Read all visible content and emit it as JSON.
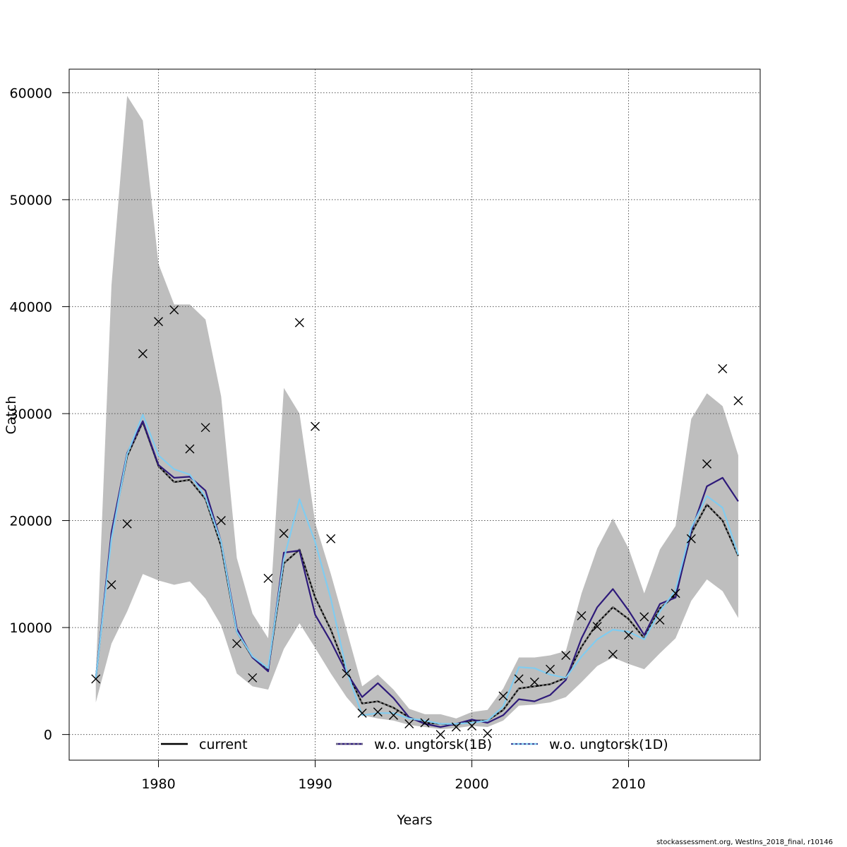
{
  "chart_data": {
    "type": "line",
    "xlabel": "Years",
    "ylabel": "Catch",
    "xlim": [
      1974.3,
      2018.4
    ],
    "ylim": [
      -2400,
      62200
    ],
    "x_ticks": [
      1980,
      1990,
      2000,
      2010
    ],
    "y_ticks": [
      0,
      10000,
      20000,
      30000,
      40000,
      50000,
      60000
    ],
    "grid": true,
    "legend_position": "bottom-inside",
    "x": [
      1976,
      1977,
      1978,
      1979,
      1980,
      1981,
      1982,
      1983,
      1984,
      1985,
      1986,
      1987,
      1988,
      1989,
      1990,
      1991,
      1992,
      1993,
      1994,
      1995,
      1996,
      1997,
      1998,
      1999,
      2000,
      2001,
      2002,
      2003,
      2004,
      2005,
      2006,
      2007,
      2008,
      2009,
      2010,
      2011,
      2012,
      2013,
      2014,
      2015,
      2016,
      2017
    ],
    "band": {
      "color": "#bebebe",
      "upper": [
        5600,
        42000,
        59700,
        57400,
        44000,
        40200,
        40200,
        38800,
        31600,
        16500,
        11300,
        9000,
        32400,
        30000,
        19800,
        15000,
        9800,
        4500,
        5600,
        4200,
        2400,
        1900,
        1900,
        1500,
        2100,
        2300,
        4300,
        7200,
        7200,
        7400,
        7800,
        13200,
        17400,
        20200,
        17400,
        13200,
        17300,
        19500,
        29500,
        31900,
        30700,
        26100
      ],
      "lower": [
        3000,
        8500,
        11500,
        15000,
        14400,
        14000,
        14300,
        12700,
        10200,
        5700,
        4500,
        4200,
        8000,
        10400,
        8100,
        5700,
        3500,
        1800,
        1500,
        1300,
        900,
        700,
        500,
        600,
        800,
        700,
        1300,
        2700,
        2800,
        3000,
        3500,
        4900,
        6400,
        7200,
        6600,
        6100,
        7600,
        9000,
        12500,
        14500,
        13400,
        10900
      ]
    },
    "series": [
      {
        "name": "current",
        "color": "#000000",
        "dashed": "#808080",
        "values": [
          5200,
          18600,
          26000,
          29200,
          25100,
          23600,
          23800,
          22000,
          17600,
          9600,
          7200,
          6000,
          16000,
          17300,
          12800,
          9800,
          6000,
          2900,
          3100,
          2500,
          1600,
          1100,
          1000,
          900,
          1300,
          1300,
          2300,
          4300,
          4500,
          4700,
          5300,
          8200,
          10400,
          11900,
          10800,
          9000,
          11800,
          13000,
          18800,
          21500,
          20000,
          16700
        ]
      },
      {
        "name": "w.o. ungtorsk(1B)",
        "color": "#2e1a7a",
        "dashed": "#808080",
        "values": [
          5200,
          18900,
          26300,
          29300,
          25200,
          24000,
          24100,
          22800,
          18000,
          9900,
          7200,
          5900,
          17000,
          17200,
          11200,
          8700,
          5800,
          3500,
          4800,
          3400,
          1600,
          1000,
          700,
          1000,
          1400,
          1100,
          1800,
          3300,
          3100,
          3700,
          5100,
          9000,
          11900,
          13600,
          11600,
          9300,
          12200,
          12800,
          19000,
          23200,
          24000,
          21800
        ]
      },
      {
        "name": "w.o. ungtorsk(1D)",
        "color": "#80ccf0",
        "dashed": "#2e1a7a",
        "values": [
          5200,
          18300,
          26200,
          29900,
          26100,
          24800,
          24300,
          22200,
          18000,
          9600,
          7300,
          6200,
          16400,
          22000,
          18000,
          12700,
          6000,
          1800,
          2000,
          2000,
          1500,
          1300,
          1000,
          1000,
          1100,
          1300,
          2600,
          6300,
          6200,
          5600,
          5300,
          7300,
          8900,
          9800,
          9600,
          8900,
          11500,
          13500,
          19300,
          22300,
          21200,
          16800
        ]
      }
    ],
    "observations": {
      "marker": "x",
      "values": [
        5200,
        14000,
        19700,
        35600,
        38600,
        39700,
        26700,
        28700,
        20000,
        8500,
        5300,
        14600,
        18800,
        38500,
        28800,
        18300,
        5700,
        2000,
        2100,
        1800,
        1000,
        1100,
        0,
        700,
        800,
        100,
        3600,
        5200,
        4900,
        6100,
        7400,
        11100,
        10100,
        7500,
        9300,
        11000,
        10700,
        13200,
        18300,
        25300,
        34200,
        31200
      ]
    }
  },
  "footer": {
    "credit": "stockassessment.org, WestIns_2018_final, r10146"
  }
}
